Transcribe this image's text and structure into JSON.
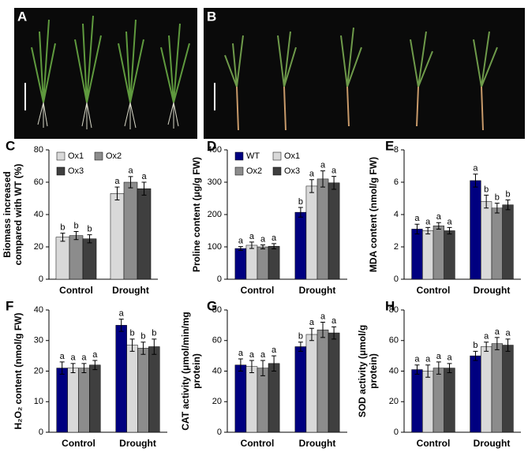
{
  "photos": [
    {
      "panel": "A"
    },
    {
      "panel": "B"
    }
  ],
  "chart_data": [
    {
      "type": "bar",
      "panel": "C",
      "ylabel": [
        "Biomass increased",
        "compared with WT (%)"
      ],
      "categories": [
        "Control",
        "Drought"
      ],
      "series": [
        {
          "name": "Ox1",
          "color": "#d9d9d9",
          "values": [
            26,
            53
          ],
          "errors": [
            2.5,
            4
          ],
          "labels": [
            "b",
            "a"
          ]
        },
        {
          "name": "Ox2",
          "color": "#8c8c8c",
          "values": [
            27,
            60
          ],
          "errors": [
            2.5,
            3.5
          ],
          "labels": [
            "b",
            "a"
          ]
        },
        {
          "name": "Ox3",
          "color": "#3f3f3f",
          "values": [
            25,
            56
          ],
          "errors": [
            2.5,
            4
          ],
          "labels": [
            "b",
            "a"
          ]
        }
      ],
      "ylim": [
        0,
        80
      ],
      "yticks": [
        0,
        20,
        40,
        60,
        80
      ],
      "legend": "upper left"
    },
    {
      "type": "bar",
      "panel": "D",
      "ylabel": [
        "Proline content (μg/g FW)"
      ],
      "categories": [
        "Control",
        "Drought"
      ],
      "series": [
        {
          "name": "WT",
          "color": "#000080",
          "values": [
            95,
            207
          ],
          "errors": [
            6,
            15
          ],
          "labels": [
            "a",
            "b"
          ]
        },
        {
          "name": "Ox1",
          "color": "#d9d9d9",
          "values": [
            105,
            288
          ],
          "errors": [
            10,
            20
          ],
          "labels": [
            "a",
            "a"
          ]
        },
        {
          "name": "Ox2",
          "color": "#8c8c8c",
          "values": [
            100,
            310
          ],
          "errors": [
            6,
            25
          ],
          "labels": [
            "a",
            "a"
          ]
        },
        {
          "name": "Ox3",
          "color": "#3f3f3f",
          "values": [
            102,
            298
          ],
          "errors": [
            8,
            20
          ],
          "labels": [
            "a",
            "a"
          ]
        }
      ],
      "ylim": [
        0,
        400
      ],
      "yticks": [
        0,
        100,
        200,
        300,
        400
      ],
      "legend": "upper left"
    },
    {
      "type": "bar",
      "panel": "E",
      "ylabel": [
        "MDA content (nmol/g FW)"
      ],
      "categories": [
        "Control",
        "Drought"
      ],
      "series": [
        {
          "name": "WT",
          "color": "#000080",
          "values": [
            3.1,
            6.1
          ],
          "errors": [
            0.3,
            0.4
          ],
          "labels": [
            "a",
            "a"
          ]
        },
        {
          "name": "Ox1",
          "color": "#d9d9d9",
          "values": [
            3.0,
            4.8
          ],
          "errors": [
            0.2,
            0.4
          ],
          "labels": [
            "a",
            "b"
          ]
        },
        {
          "name": "Ox2",
          "color": "#8c8c8c",
          "values": [
            3.3,
            4.4
          ],
          "errors": [
            0.2,
            0.3
          ],
          "labels": [
            "a",
            "b"
          ]
        },
        {
          "name": "Ox3",
          "color": "#3f3f3f",
          "values": [
            3.0,
            4.6
          ],
          "errors": [
            0.2,
            0.3
          ],
          "labels": [
            "a",
            "b"
          ]
        }
      ],
      "ylim": [
        0,
        8
      ],
      "yticks": [
        0,
        2,
        4,
        6,
        8
      ]
    },
    {
      "type": "bar",
      "panel": "F",
      "ylabel": [
        "H₂O₂ content (nmol/g FW)"
      ],
      "categories": [
        "Control",
        "Drought"
      ],
      "series": [
        {
          "name": "WT",
          "color": "#000080",
          "values": [
            21,
            35
          ],
          "errors": [
            2,
            2
          ],
          "labels": [
            "a",
            "a"
          ]
        },
        {
          "name": "Ox1",
          "color": "#d9d9d9",
          "values": [
            21,
            28.5
          ],
          "errors": [
            1.5,
            2
          ],
          "labels": [
            "a",
            "b"
          ]
        },
        {
          "name": "Ox2",
          "color": "#8c8c8c",
          "values": [
            21,
            27.5
          ],
          "errors": [
            1.5,
            2
          ],
          "labels": [
            "a",
            "b"
          ]
        },
        {
          "name": "Ox3",
          "color": "#3f3f3f",
          "values": [
            22,
            28
          ],
          "errors": [
            1.5,
            2.5
          ],
          "labels": [
            "a",
            "b"
          ]
        }
      ],
      "ylim": [
        0,
        40
      ],
      "yticks": [
        0,
        10,
        20,
        30,
        40
      ]
    },
    {
      "type": "bar",
      "panel": "G",
      "ylabel": [
        "CAT activity (μmol/min/mg",
        "protein)"
      ],
      "categories": [
        "Control",
        "Drought"
      ],
      "series": [
        {
          "name": "WT",
          "color": "#000080",
          "values": [
            44,
            56
          ],
          "errors": [
            4,
            3
          ],
          "labels": [
            "a",
            "b"
          ]
        },
        {
          "name": "Ox1",
          "color": "#d9d9d9",
          "values": [
            43,
            64
          ],
          "errors": [
            4,
            4
          ],
          "labels": [
            "a",
            "a"
          ]
        },
        {
          "name": "Ox2",
          "color": "#8c8c8c",
          "values": [
            42,
            67
          ],
          "errors": [
            5,
            5
          ],
          "labels": [
            "a",
            "a"
          ]
        },
        {
          "name": "Ox3",
          "color": "#3f3f3f",
          "values": [
            45,
            65
          ],
          "errors": [
            5,
            4
          ],
          "labels": [
            "a",
            "a"
          ]
        }
      ],
      "ylim": [
        0,
        80
      ],
      "yticks": [
        0,
        20,
        40,
        60,
        80
      ]
    },
    {
      "type": "bar",
      "panel": "H",
      "ylabel": [
        "SOD activity (μmol/g",
        "protein)"
      ],
      "categories": [
        "Control",
        "Drought"
      ],
      "series": [
        {
          "name": "WT",
          "color": "#000080",
          "values": [
            41,
            50
          ],
          "errors": [
            3,
            3
          ],
          "labels": [
            "a",
            "b"
          ]
        },
        {
          "name": "Ox1",
          "color": "#d9d9d9",
          "values": [
            40,
            56
          ],
          "errors": [
            4,
            3
          ],
          "labels": [
            "a",
            "a"
          ]
        },
        {
          "name": "Ox2",
          "color": "#8c8c8c",
          "values": [
            42,
            58
          ],
          "errors": [
            4,
            4
          ],
          "labels": [
            "a",
            "a"
          ]
        },
        {
          "name": "Ox3",
          "color": "#3f3f3f",
          "values": [
            42,
            57
          ],
          "errors": [
            3,
            4
          ],
          "labels": [
            "a",
            "a"
          ]
        }
      ],
      "ylim": [
        0,
        80
      ],
      "yticks": [
        0,
        20,
        40,
        60,
        80
      ]
    }
  ]
}
